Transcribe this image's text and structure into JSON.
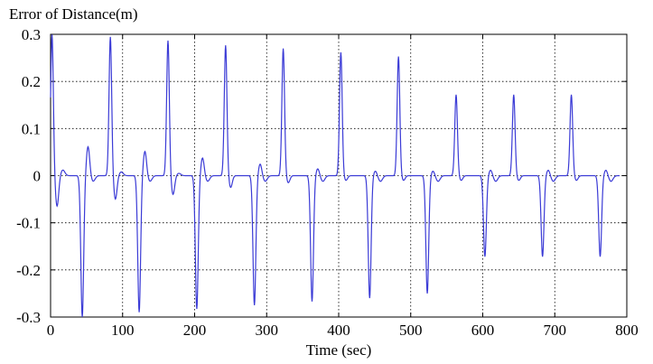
{
  "chart_data": {
    "type": "line",
    "title": "Error of Distance(m)",
    "xlabel": "Time (sec)",
    "ylabel": "",
    "xlim": [
      0,
      800
    ],
    "ylim": [
      -0.3,
      0.3
    ],
    "x_ticks": [
      0,
      100,
      200,
      300,
      400,
      500,
      600,
      700,
      800
    ],
    "x_tick_labels": [
      "0",
      "100",
      "200",
      "300",
      "400",
      "500",
      "600",
      "700",
      "800"
    ],
    "y_ticks": [
      0.3,
      0.2,
      0.1,
      0,
      -0.1,
      -0.2,
      -0.3
    ],
    "y_tick_labels": [
      "0.3",
      "0.2",
      "0.1",
      "0",
      "-0.1",
      "-0.2",
      "-0.3"
    ],
    "grid": true,
    "line_color": "#3b3bd6",
    "series": [
      {
        "events": [
          {
            "t": 2,
            "peak": 0.3,
            "trough": -0.065,
            "ripple": 0.012
          },
          {
            "t": 44,
            "peak": 0.062,
            "trough": -0.3,
            "ripple": 0.0
          },
          {
            "t": 83,
            "peak": 0.295,
            "trough": -0.05,
            "ripple": 0.008
          },
          {
            "t": 123,
            "peak": 0.052,
            "trough": -0.29,
            "ripple": 0.0
          },
          {
            "t": 163,
            "peak": 0.287,
            "trough": -0.04,
            "ripple": 0.005
          },
          {
            "t": 203,
            "peak": 0.038,
            "trough": -0.283,
            "ripple": 0.0
          },
          {
            "t": 243,
            "peak": 0.277,
            "trough": -0.025,
            "ripple": 0.0
          },
          {
            "t": 283,
            "peak": 0.025,
            "trough": -0.275,
            "ripple": 0.0
          },
          {
            "t": 323,
            "peak": 0.27,
            "trough": -0.015,
            "ripple": 0.0
          },
          {
            "t": 363,
            "peak": 0.015,
            "trough": -0.267,
            "ripple": 0.0
          },
          {
            "t": 403,
            "peak": 0.262,
            "trough": -0.01,
            "ripple": 0.0
          },
          {
            "t": 443,
            "peak": 0.01,
            "trough": -0.26,
            "ripple": 0.0
          },
          {
            "t": 483,
            "peak": 0.253,
            "trough": -0.01,
            "ripple": 0.0
          },
          {
            "t": 523,
            "peak": 0.01,
            "trough": -0.25,
            "ripple": 0.0
          },
          {
            "t": 563,
            "peak": 0.172,
            "trough": -0.01,
            "ripple": 0.0
          },
          {
            "t": 603,
            "peak": 0.012,
            "trough": -0.172,
            "ripple": 0.0
          },
          {
            "t": 643,
            "peak": 0.172,
            "trough": -0.01,
            "ripple": 0.0
          },
          {
            "t": 683,
            "peak": 0.012,
            "trough": -0.172,
            "ripple": 0.0
          },
          {
            "t": 723,
            "peak": 0.172,
            "trough": -0.01,
            "ripple": 0.0
          },
          {
            "t": 763,
            "peak": 0.012,
            "trough": -0.172,
            "ripple": 0.0
          }
        ]
      }
    ]
  }
}
